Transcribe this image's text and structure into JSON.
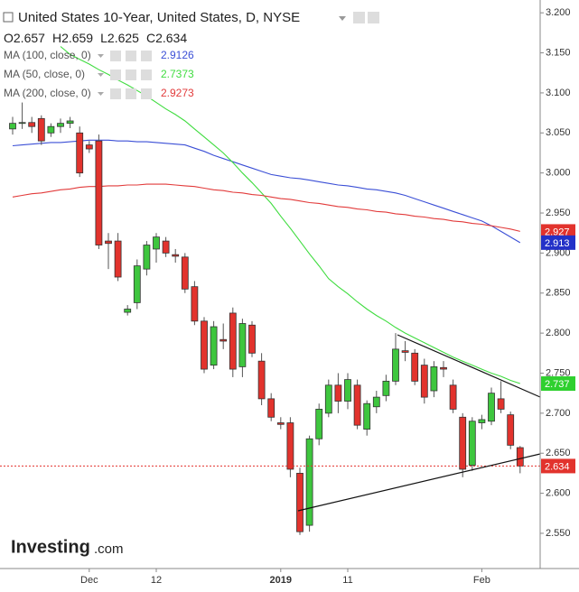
{
  "chart_data": {
    "type": "candlestick",
    "title": "United States 10-Year, United States, D, NYSE",
    "ohlc_legend": {
      "labels": [
        "O",
        "H",
        "L",
        "C"
      ],
      "values": [
        2.657,
        2.659,
        2.625,
        2.634
      ]
    },
    "categories": [
      null,
      null,
      null,
      null,
      null,
      null,
      null,
      null,
      "Dec",
      null,
      null,
      null,
      null,
      null,
      null,
      "12",
      null,
      null,
      null,
      null,
      null,
      null,
      null,
      null,
      null,
      null,
      null,
      null,
      "2019",
      null,
      null,
      null,
      null,
      null,
      null,
      "11",
      null,
      null,
      null,
      null,
      null,
      null,
      null,
      null,
      null,
      null,
      null,
      null,
      null,
      "Feb",
      null,
      null,
      null,
      null
    ],
    "open": [
      3.055,
      3.062,
      3.063,
      3.068,
      3.05,
      3.058,
      3.062,
      3.05,
      3.035,
      3.04,
      2.915,
      2.915,
      2.826,
      2.838,
      2.88,
      2.905,
      2.915,
      2.898,
      2.895,
      2.858,
      2.815,
      2.76,
      2.792,
      2.825,
      2.758,
      2.81,
      2.765,
      2.718,
      2.688,
      2.688,
      2.625,
      2.56,
      2.668,
      2.7,
      2.735,
      2.715,
      2.735,
      2.68,
      2.708,
      2.722,
      2.74,
      2.778,
      2.775,
      2.76,
      2.728,
      2.757,
      2.735,
      2.695,
      2.635,
      2.688,
      2.69,
      2.718,
      2.698,
      2.657
    ],
    "high": [
      3.07,
      3.088,
      3.07,
      3.072,
      3.062,
      3.068,
      3.07,
      3.058,
      3.04,
      3.048,
      2.925,
      2.925,
      2.835,
      2.892,
      2.915,
      2.925,
      2.92,
      2.905,
      2.9,
      2.865,
      2.82,
      2.815,
      2.812,
      2.832,
      2.818,
      2.815,
      2.775,
      2.725,
      2.695,
      2.695,
      2.632,
      2.672,
      2.712,
      2.742,
      2.75,
      2.75,
      2.742,
      2.716,
      2.728,
      2.748,
      2.8,
      2.79,
      2.78,
      2.768,
      2.765,
      2.765,
      2.742,
      2.7,
      2.695,
      2.698,
      2.732,
      2.74,
      2.702,
      2.659
    ],
    "low": [
      3.048,
      3.055,
      3.05,
      3.035,
      3.045,
      3.05,
      3.056,
      2.995,
      3.025,
      2.905,
      2.88,
      2.865,
      2.822,
      2.83,
      2.872,
      2.888,
      2.895,
      2.888,
      2.85,
      2.81,
      2.75,
      2.755,
      2.78,
      2.745,
      2.745,
      2.77,
      2.71,
      2.69,
      2.68,
      2.62,
      2.548,
      2.552,
      2.66,
      2.695,
      2.7,
      2.705,
      2.68,
      2.672,
      2.7,
      2.715,
      2.735,
      2.765,
      2.735,
      2.712,
      2.72,
      2.745,
      2.7,
      2.62,
      2.628,
      2.68,
      2.685,
      2.7,
      2.655,
      2.625
    ],
    "close": [
      3.062,
      3.063,
      3.058,
      3.04,
      3.058,
      3.062,
      3.065,
      3.0,
      3.03,
      2.91,
      2.912,
      2.87,
      2.83,
      2.884,
      2.91,
      2.92,
      2.9,
      2.896,
      2.855,
      2.815,
      2.755,
      2.808,
      2.79,
      2.755,
      2.812,
      2.775,
      2.718,
      2.695,
      2.686,
      2.63,
      2.552,
      2.668,
      2.705,
      2.735,
      2.715,
      2.742,
      2.685,
      2.712,
      2.72,
      2.74,
      2.78,
      2.776,
      2.74,
      2.72,
      2.758,
      2.755,
      2.705,
      2.63,
      2.69,
      2.692,
      2.725,
      2.705,
      2.66,
      2.634
    ],
    "up_color": "#3ec63e",
    "down_color": "#e2332d",
    "lines": [
      {
        "name": "MA (100, close, 0)",
        "color": "#3b4fd6",
        "last": 2.9126,
        "values": [
          3.034,
          3.035,
          3.036,
          3.037,
          3.038,
          3.038,
          3.039,
          3.04,
          3.041,
          3.041,
          3.041,
          3.04,
          3.04,
          3.039,
          3.039,
          3.038,
          3.037,
          3.036,
          3.035,
          3.031,
          3.027,
          3.022,
          3.018,
          3.014,
          3.01,
          3.006,
          3.002,
          2.998,
          2.996,
          2.994,
          2.993,
          2.991,
          2.989,
          2.987,
          2.985,
          2.984,
          2.982,
          2.98,
          2.979,
          2.977,
          2.975,
          2.972,
          2.968,
          2.964,
          2.96,
          2.956,
          2.952,
          2.948,
          2.944,
          2.94,
          2.934,
          2.927,
          2.92,
          2.913
        ]
      },
      {
        "name": "MA (50, close, 0)",
        "color": "#3fdc3f",
        "last": 2.7373,
        "values": [
          null,
          null,
          null,
          null,
          null,
          3.158,
          3.148,
          3.142,
          3.136,
          3.129,
          3.123,
          3.116,
          3.11,
          3.103,
          3.096,
          3.088,
          3.08,
          3.073,
          3.065,
          3.055,
          3.045,
          3.035,
          3.025,
          3.013,
          3.0,
          2.988,
          2.975,
          2.962,
          2.946,
          2.931,
          2.915,
          2.899,
          2.884,
          2.868,
          2.858,
          2.849,
          2.839,
          2.83,
          2.822,
          2.815,
          2.807,
          2.8,
          2.794,
          2.788,
          2.782,
          2.776,
          2.77,
          2.765,
          2.76,
          2.755,
          2.75,
          2.746,
          2.741,
          2.737
        ]
      },
      {
        "name": "MA (200, close, 0)",
        "color": "#e23b3b",
        "last": 2.9273,
        "values": [
          2.97,
          2.972,
          2.974,
          2.975,
          2.977,
          2.979,
          2.98,
          2.982,
          2.983,
          2.983,
          2.984,
          2.984,
          2.985,
          2.985,
          2.986,
          2.986,
          2.986,
          2.985,
          2.984,
          2.983,
          2.981,
          2.979,
          2.978,
          2.976,
          2.975,
          2.973,
          2.972,
          2.97,
          2.968,
          2.967,
          2.965,
          2.963,
          2.962,
          2.96,
          2.958,
          2.957,
          2.955,
          2.954,
          2.952,
          2.951,
          2.949,
          2.948,
          2.946,
          2.945,
          2.943,
          2.942,
          2.94,
          2.939,
          2.937,
          2.936,
          2.934,
          2.932,
          2.93,
          2.927
        ]
      }
    ],
    "price_tags": [
      {
        "value": 2.927,
        "color": "#e2332d"
      },
      {
        "value": 2.913,
        "color": "#2331c8"
      },
      {
        "value": 2.737,
        "color": "#2fd02f"
      },
      {
        "value": 2.634,
        "color": "#e2332d"
      }
    ],
    "ylim": [
      2.506,
      3.216
    ],
    "yticks": [
      {
        "value": 3.2,
        "label": "3.200"
      },
      {
        "value": 3.15,
        "label": "3.150"
      },
      {
        "value": 3.1,
        "label": "3.100"
      },
      {
        "value": 3.05,
        "label": "3.050"
      },
      {
        "value": 3.0,
        "label": "3.000"
      },
      {
        "value": 2.95,
        "label": "2.950"
      },
      {
        "value": 2.9,
        "label": "2.900"
      },
      {
        "value": 2.85,
        "label": "2.850"
      },
      {
        "value": 2.8,
        "label": "2.800"
      },
      {
        "value": 2.75,
        "label": "2.750"
      },
      {
        "value": 2.7,
        "label": "2.700"
      },
      {
        "value": 2.65,
        "label": "2.650"
      },
      {
        "value": 2.6,
        "label": "2.600"
      },
      {
        "value": 2.55,
        "label": "2.550"
      }
    ],
    "logo": "Investing",
    "logo_suffix": ".com"
  }
}
